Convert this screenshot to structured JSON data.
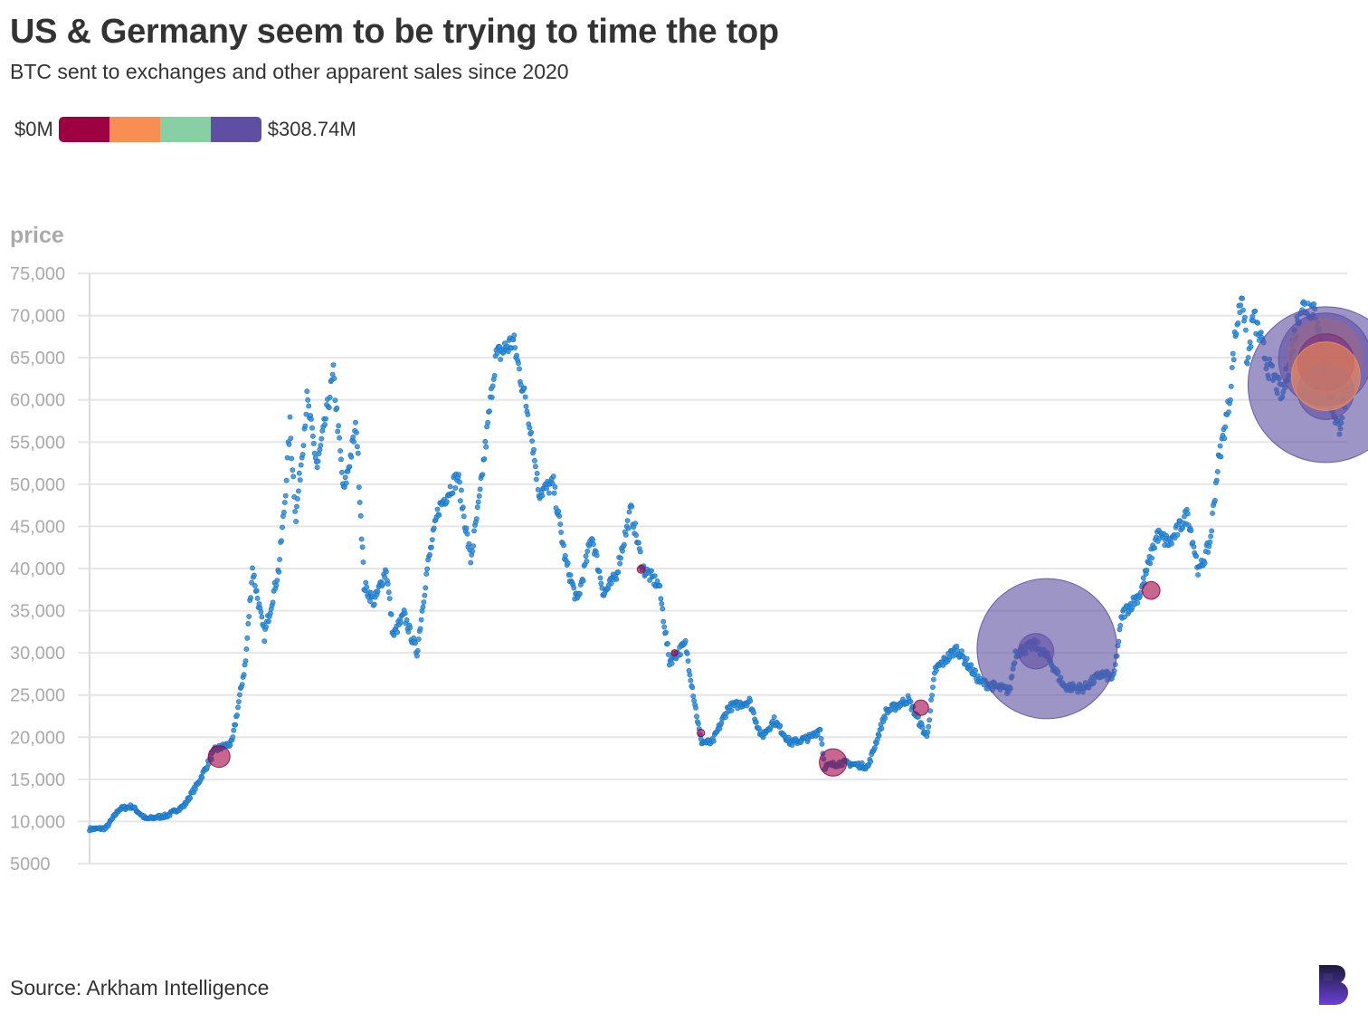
{
  "title": "US & Germany seem to be trying to time the top",
  "subtitle": "BTC sent to exchanges and other apparent sales since 2020",
  "legend": {
    "min_label": "$0M",
    "max_label": "$308.74M",
    "colors": [
      "#9e0142",
      "#f98e52",
      "#88cfa4",
      "#5e4fa2"
    ]
  },
  "source": "Source: Arkham Intelligence",
  "colors": {
    "price_dot": "#2b8fe0",
    "grid": "#e6e6e6",
    "axis_text": "#aaaaaa"
  },
  "chart_data": {
    "type": "scatter",
    "ylabel": "price",
    "xlabel": "",
    "ylim": [
      5000,
      75000
    ],
    "yticks": [
      {
        "value": 75000,
        "label": "75,000"
      },
      {
        "value": 70000,
        "label": "70,000"
      },
      {
        "value": 65000,
        "label": "65,000"
      },
      {
        "value": 60000,
        "label": "60,000"
      },
      {
        "value": 55000,
        "label": "55,000"
      },
      {
        "value": 50000,
        "label": "50,000"
      },
      {
        "value": 45000,
        "label": "45,000"
      },
      {
        "value": 40000,
        "label": "40,000"
      },
      {
        "value": 35000,
        "label": "35,000"
      },
      {
        "value": 30000,
        "label": "30,000"
      },
      {
        "value": 25000,
        "label": "25,000"
      },
      {
        "value": 20000,
        "label": "20,000"
      },
      {
        "value": 15000,
        "label": "15,000"
      },
      {
        "value": 10000,
        "label": "10,000"
      },
      {
        "value": 5000,
        "label": "5000"
      }
    ],
    "xlim": [
      "2020-07-01",
      "2024-07-15"
    ],
    "price": {
      "keypoints": [
        [
          "2020-07-01",
          9100
        ],
        [
          "2020-07-20",
          9200
        ],
        [
          "2020-08-05",
          11500
        ],
        [
          "2020-08-20",
          11800
        ],
        [
          "2020-09-05",
          10300
        ],
        [
          "2020-09-30",
          10700
        ],
        [
          "2020-10-20",
          11900
        ],
        [
          "2020-11-05",
          14500
        ],
        [
          "2020-11-25",
          18500
        ],
        [
          "2020-12-15",
          19300
        ],
        [
          "2020-12-31",
          29000
        ],
        [
          "2021-01-08",
          40000
        ],
        [
          "2021-01-22",
          32000
        ],
        [
          "2021-02-08",
          40000
        ],
        [
          "2021-02-15",
          48000
        ],
        [
          "2021-02-21",
          57000
        ],
        [
          "2021-02-28",
          46000
        ],
        [
          "2021-03-13",
          60000
        ],
        [
          "2021-03-25",
          52000
        ],
        [
          "2021-04-13",
          63000
        ],
        [
          "2021-04-25",
          49000
        ],
        [
          "2021-05-10",
          57000
        ],
        [
          "2021-05-19",
          38000
        ],
        [
          "2021-05-31",
          36000
        ],
        [
          "2021-06-14",
          40000
        ],
        [
          "2021-06-22",
          32000
        ],
        [
          "2021-07-05",
          34500
        ],
        [
          "2021-07-20",
          30000
        ],
        [
          "2021-08-01",
          40000
        ],
        [
          "2021-08-14",
          47000
        ],
        [
          "2021-09-06",
          51000
        ],
        [
          "2021-09-21",
          41000
        ],
        [
          "2021-10-01",
          48000
        ],
        [
          "2021-10-20",
          65000
        ],
        [
          "2021-11-10",
          67000
        ],
        [
          "2021-11-30",
          57000
        ],
        [
          "2021-12-10",
          49000
        ],
        [
          "2021-12-27",
          50000
        ],
        [
          "2022-01-10",
          41000
        ],
        [
          "2022-01-24",
          36000
        ],
        [
          "2022-02-10",
          44000
        ],
        [
          "2022-02-24",
          37000
        ],
        [
          "2022-03-10",
          39000
        ],
        [
          "2022-03-28",
          47000
        ],
        [
          "2022-04-11",
          40000
        ],
        [
          "2022-04-30",
          38000
        ],
        [
          "2022-05-12",
          29000
        ],
        [
          "2022-05-31",
          31000
        ],
        [
          "2022-06-18",
          19500
        ],
        [
          "2022-07-01",
          19300
        ],
        [
          "2022-07-20",
          23500
        ],
        [
          "2022-08-14",
          24300
        ],
        [
          "2022-08-28",
          20000
        ],
        [
          "2022-09-12",
          22000
        ],
        [
          "2022-10-01",
          19300
        ],
        [
          "2022-10-25",
          20000
        ],
        [
          "2022-11-05",
          21000
        ],
        [
          "2022-11-10",
          16500
        ],
        [
          "2022-12-01",
          17000
        ],
        [
          "2022-12-31",
          16500
        ],
        [
          "2023-01-21",
          23000
        ],
        [
          "2023-02-16",
          24500
        ],
        [
          "2023-03-10",
          20000
        ],
        [
          "2023-03-20",
          28000
        ],
        [
          "2023-04-14",
          30500
        ],
        [
          "2023-05-12",
          26500
        ],
        [
          "2023-06-15",
          25500
        ],
        [
          "2023-06-22",
          30000
        ],
        [
          "2023-07-15",
          31000
        ],
        [
          "2023-08-01",
          29200
        ],
        [
          "2023-08-18",
          26000
        ],
        [
          "2023-09-10",
          25800
        ],
        [
          "2023-10-01",
          27500
        ],
        [
          "2023-10-15",
          27000
        ],
        [
          "2023-10-25",
          34500
        ],
        [
          "2023-11-15",
          37000
        ],
        [
          "2023-12-05",
          44000
        ],
        [
          "2023-12-20",
          43000
        ],
        [
          "2024-01-10",
          46500
        ],
        [
          "2024-01-23",
          39500
        ],
        [
          "2024-02-05",
          43000
        ],
        [
          "2024-02-14",
          52000
        ],
        [
          "2024-02-28",
          60000
        ],
        [
          "2024-03-05",
          67000
        ],
        [
          "2024-03-14",
          73000
        ],
        [
          "2024-03-20",
          64000
        ],
        [
          "2024-03-27",
          70000
        ],
        [
          "2024-04-13",
          64000
        ],
        [
          "2024-04-30",
          60500
        ],
        [
          "2024-05-21",
          71000
        ],
        [
          "2024-06-07",
          71000
        ],
        [
          "2024-06-24",
          60500
        ],
        [
          "2024-07-05",
          56500
        ],
        [
          "2024-07-14",
          61000
        ]
      ]
    },
    "sales": [
      {
        "date": "2020-11-30",
        "price": 17700,
        "value_m": 6,
        "color": "#9e0142"
      },
      {
        "date": "2022-04-09",
        "price": 39900,
        "value_m": 0.8,
        "color": "#9e0142"
      },
      {
        "date": "2022-05-18",
        "price": 30000,
        "value_m": 0.5,
        "color": "#9e0142"
      },
      {
        "date": "2022-06-18",
        "price": 20500,
        "value_m": 0.7,
        "color": "#9e0142"
      },
      {
        "date": "2022-11-20",
        "price": 17000,
        "value_m": 9.5,
        "color": "#9e0142"
      },
      {
        "date": "2023-03-03",
        "price": 23500,
        "value_m": 3,
        "color": "#9e0142"
      },
      {
        "date": "2023-07-16",
        "price": 30200,
        "value_m": 16,
        "color": "#5e4fa2"
      },
      {
        "date": "2023-07-29",
        "price": 30500,
        "value_m": 250,
        "color": "#5e4fa2"
      },
      {
        "date": "2023-11-28",
        "price": 37400,
        "value_m": 4,
        "color": "#9e0142"
      },
      {
        "date": "2024-06-19",
        "price": 64800,
        "value_m": 110,
        "color": "#5e4fa2"
      },
      {
        "date": "2024-06-19",
        "price": 65200,
        "value_m": 70,
        "color": "#f98e52"
      },
      {
        "date": "2024-06-20",
        "price": 64500,
        "value_m": 40,
        "color": "#9e0142"
      },
      {
        "date": "2024-06-20",
        "price": 61800,
        "value_m": 308.74,
        "color": "#5e4fa2"
      },
      {
        "date": "2024-06-20",
        "price": 61000,
        "value_m": 40,
        "color": "#5e4fa2"
      },
      {
        "date": "2024-06-20",
        "price": 62800,
        "value_m": 60,
        "color": "#f98e52"
      }
    ]
  }
}
